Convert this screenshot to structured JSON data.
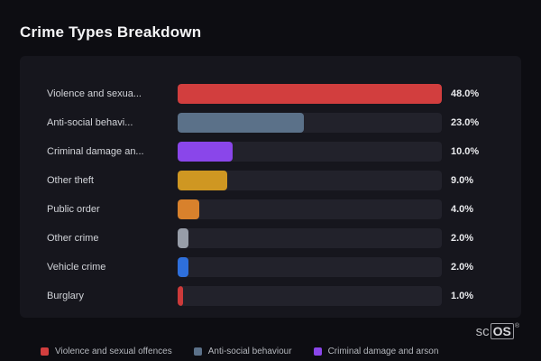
{
  "page": {
    "title": "Crime Types Breakdown"
  },
  "chart_data": {
    "type": "bar",
    "orientation": "horizontal",
    "title": "Crime Types Breakdown",
    "categories": [
      "Violence and sexua...",
      "Anti-social behavi...",
      "Criminal damage an...",
      "Other theft",
      "Public order",
      "Other crime",
      "Vehicle crime",
      "Burglary"
    ],
    "values": [
      48.0,
      23.0,
      10.0,
      9.0,
      4.0,
      2.0,
      2.0,
      1.0
    ],
    "value_labels": [
      "48.0%",
      "23.0%",
      "10.0%",
      "9.0%",
      "4.0%",
      "2.0%",
      "2.0%",
      "1.0%"
    ],
    "bar_colors": [
      "#d23e3e",
      "#5b7189",
      "#8a46ea",
      "#cf9722",
      "#d8812c",
      "#979da8",
      "#2e6fdb",
      "#cc3a3a"
    ],
    "xlim": [
      0,
      48
    ],
    "grid": false,
    "legend_position": "bottom"
  },
  "legend": {
    "items": [
      {
        "label": "Violence and sexual offences",
        "color": "#d23e3e"
      },
      {
        "label": "Anti-social behaviour",
        "color": "#5b7189"
      },
      {
        "label": "Criminal damage and arson",
        "color": "#8a46ea"
      }
    ]
  },
  "branding": {
    "prefix": "sc",
    "suffix": "OS",
    "reg": "®"
  }
}
